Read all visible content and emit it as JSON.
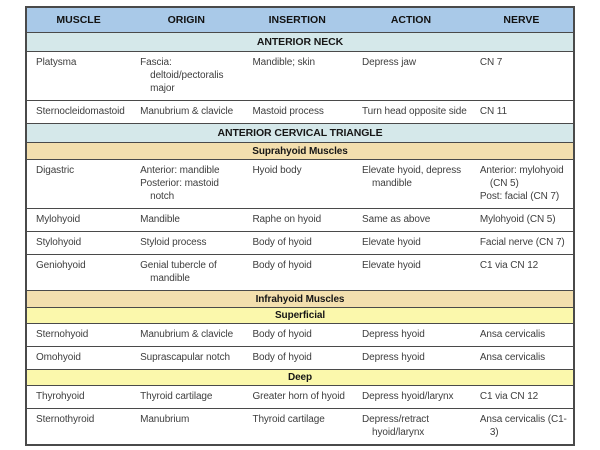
{
  "colors": {
    "header_bg": "#a9c9e8",
    "header_text": "#111111",
    "band_blue": "#d5e8ea",
    "band_tan": "#f3dfae",
    "band_yellow": "#fbf8ac",
    "row_bg": "#ffffff",
    "border": "#4a4a4a",
    "body_text": "#3e3e3e",
    "page_bg": "#ffffff"
  },
  "table": {
    "columns": [
      "MUSCLE",
      "ORIGIN",
      "INSERTION",
      "ACTION",
      "NERVE"
    ],
    "rows": [
      {
        "type": "band",
        "band": "blue",
        "label": "ANTERIOR NECK"
      },
      {
        "type": "muscle",
        "muscle": [
          "Platysma"
        ],
        "origin": [
          "Fascia: deltoid/pectoralis major"
        ],
        "insertion": [
          "Mandible; skin"
        ],
        "action": [
          "Depress jaw"
        ],
        "nerve": [
          "CN 7"
        ]
      },
      {
        "type": "muscle",
        "muscle": [
          "Sternocleidomastoid"
        ],
        "origin": [
          "Manubrium & clavicle"
        ],
        "insertion": [
          "Mastoid process"
        ],
        "action": [
          "Turn head opposite side"
        ],
        "nerve": [
          "CN 11"
        ]
      },
      {
        "type": "band",
        "band": "blue",
        "label": "ANTERIOR CERVICAL TRIANGLE"
      },
      {
        "type": "band",
        "band": "tan",
        "label": "Suprahyoid Muscles"
      },
      {
        "type": "muscle",
        "muscle": [
          "Digastric"
        ],
        "origin": [
          "Anterior: mandible",
          "Posterior: mastoid notch"
        ],
        "insertion": [
          "Hyoid body"
        ],
        "action": [
          "Elevate hyoid, depress mandible"
        ],
        "nerve": [
          "Anterior: mylohyoid (CN 5)",
          "Post: facial (CN 7)"
        ]
      },
      {
        "type": "muscle",
        "muscle": [
          "Mylohyoid"
        ],
        "origin": [
          "Mandible"
        ],
        "insertion": [
          "Raphe on hyoid"
        ],
        "action": [
          "Same as above"
        ],
        "nerve": [
          "Mylohyoid (CN 5)"
        ]
      },
      {
        "type": "muscle",
        "muscle": [
          "Stylohyoid"
        ],
        "origin": [
          "Styloid process"
        ],
        "insertion": [
          "Body of hyoid"
        ],
        "action": [
          "Elevate hyoid"
        ],
        "nerve": [
          "Facial nerve (CN 7)"
        ]
      },
      {
        "type": "muscle",
        "muscle": [
          "Geniohyoid"
        ],
        "origin": [
          "Genial tubercle of mandible"
        ],
        "insertion": [
          "Body of hyoid"
        ],
        "action": [
          "Elevate hyoid"
        ],
        "nerve": [
          "C1 via CN 12"
        ]
      },
      {
        "type": "band",
        "band": "tan",
        "label": "Infrahyoid Muscles"
      },
      {
        "type": "band",
        "band": "yellow",
        "label": "Superficial"
      },
      {
        "type": "muscle",
        "muscle": [
          "Sternohyoid"
        ],
        "origin": [
          "Manubrium & clavicle"
        ],
        "insertion": [
          "Body of hyoid"
        ],
        "action": [
          "Depress hyoid"
        ],
        "nerve": [
          "Ansa cervicalis"
        ]
      },
      {
        "type": "muscle",
        "muscle": [
          "Omohyoid"
        ],
        "origin": [
          "Suprascapular notch"
        ],
        "insertion": [
          "Body of hyoid"
        ],
        "action": [
          "Depress hyoid"
        ],
        "nerve": [
          "Ansa cervicalis"
        ]
      },
      {
        "type": "band",
        "band": "yellow",
        "label": "Deep"
      },
      {
        "type": "muscle",
        "muscle": [
          "Thyrohyoid"
        ],
        "origin": [
          "Thyroid cartilage"
        ],
        "insertion": [
          "Greater horn of hyoid"
        ],
        "action": [
          "Depress hyoid/larynx"
        ],
        "nerve": [
          "C1 via CN 12"
        ]
      },
      {
        "type": "muscle",
        "muscle": [
          "Sternothyroid"
        ],
        "origin": [
          "Manubrium"
        ],
        "insertion": [
          "Thyroid cartilage"
        ],
        "action": [
          "Depress/retract hyoid/larynx"
        ],
        "nerve": [
          "Ansa cervicalis (C1-3)"
        ]
      }
    ]
  }
}
